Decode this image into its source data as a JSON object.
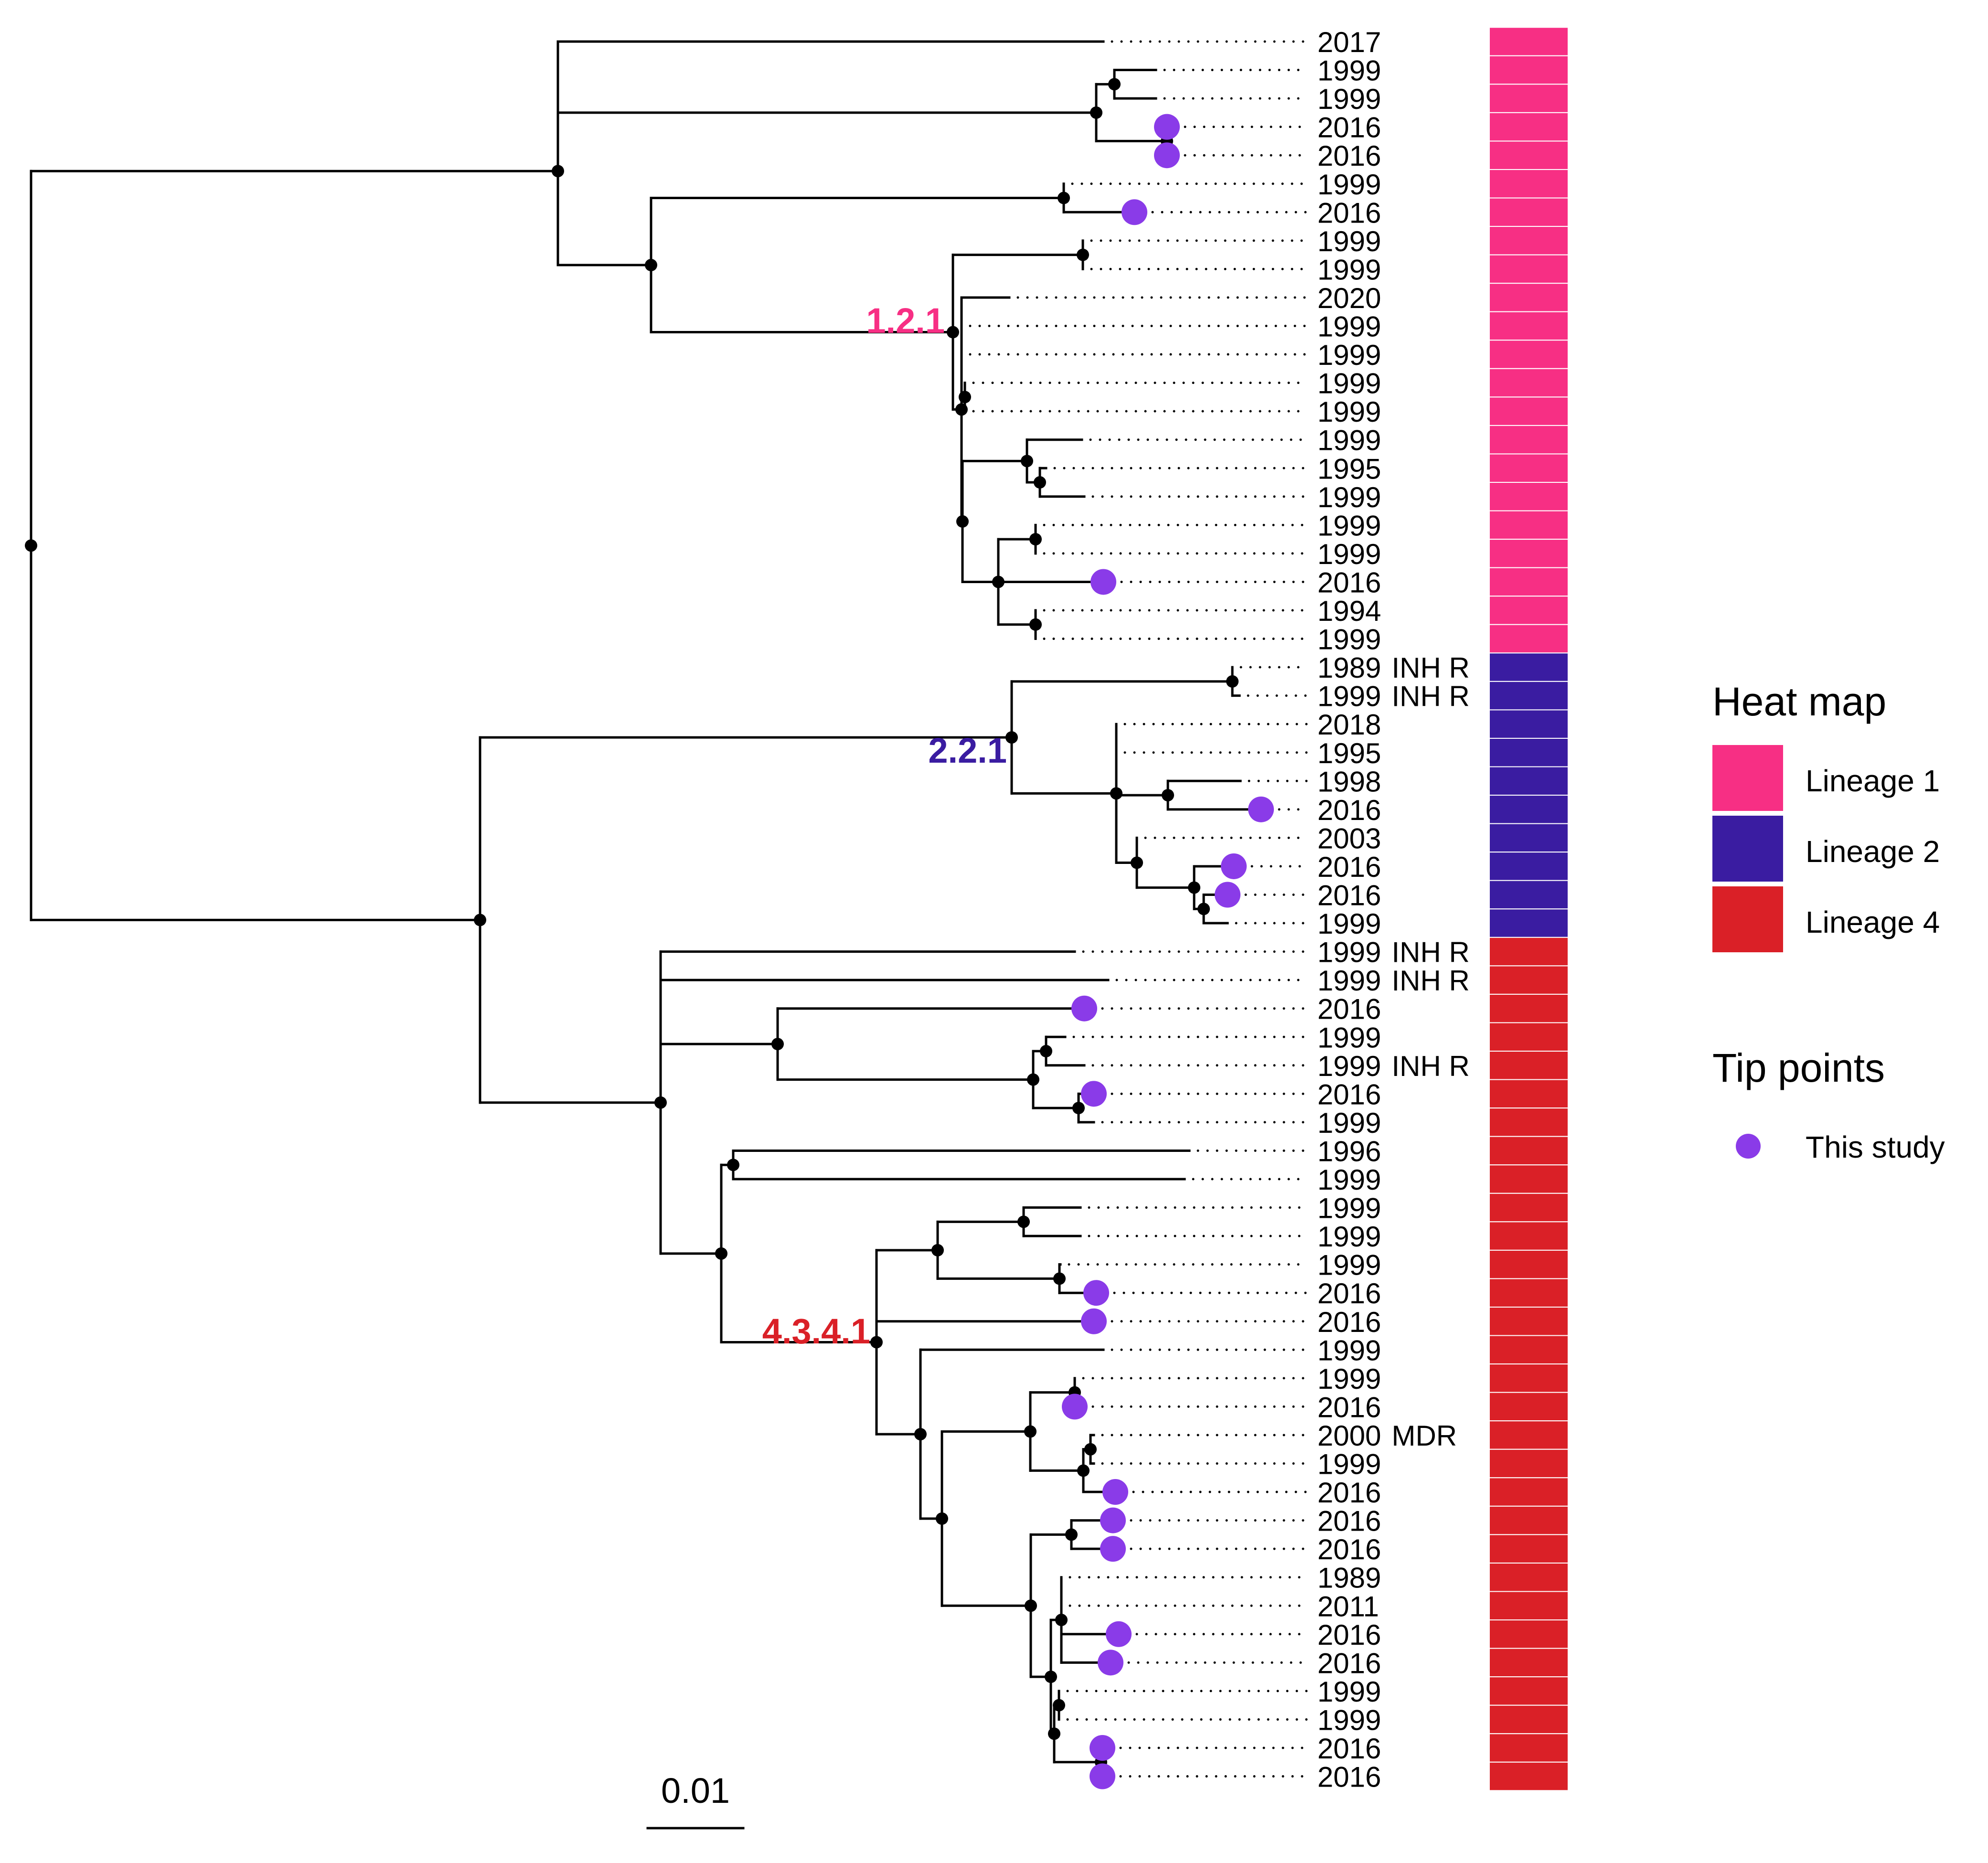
{
  "tree": {
    "tips": [
      {
        "year": "2017",
        "suffix": "",
        "lineage": 1,
        "this_study": false
      },
      {
        "year": "1999",
        "suffix": "",
        "lineage": 1,
        "this_study": false
      },
      {
        "year": "1999",
        "suffix": "",
        "lineage": 1,
        "this_study": false
      },
      {
        "year": "2016",
        "suffix": "",
        "lineage": 1,
        "this_study": true
      },
      {
        "year": "2016",
        "suffix": "",
        "lineage": 1,
        "this_study": true
      },
      {
        "year": "1999",
        "suffix": "",
        "lineage": 1,
        "this_study": false
      },
      {
        "year": "2016",
        "suffix": "",
        "lineage": 1,
        "this_study": true
      },
      {
        "year": "1999",
        "suffix": "",
        "lineage": 1,
        "this_study": false
      },
      {
        "year": "1999",
        "suffix": "",
        "lineage": 1,
        "this_study": false
      },
      {
        "year": "2020",
        "suffix": "",
        "lineage": 1,
        "this_study": false
      },
      {
        "year": "1999",
        "suffix": "",
        "lineage": 1,
        "this_study": false
      },
      {
        "year": "1999",
        "suffix": "",
        "lineage": 1,
        "this_study": false
      },
      {
        "year": "1999",
        "suffix": "",
        "lineage": 1,
        "this_study": false
      },
      {
        "year": "1999",
        "suffix": "",
        "lineage": 1,
        "this_study": false
      },
      {
        "year": "1999",
        "suffix": "",
        "lineage": 1,
        "this_study": false
      },
      {
        "year": "1995",
        "suffix": "",
        "lineage": 1,
        "this_study": false
      },
      {
        "year": "1999",
        "suffix": "",
        "lineage": 1,
        "this_study": false
      },
      {
        "year": "1999",
        "suffix": "",
        "lineage": 1,
        "this_study": false
      },
      {
        "year": "1999",
        "suffix": "",
        "lineage": 1,
        "this_study": false
      },
      {
        "year": "2016",
        "suffix": "",
        "lineage": 1,
        "this_study": true
      },
      {
        "year": "1994",
        "suffix": "",
        "lineage": 1,
        "this_study": false
      },
      {
        "year": "1999",
        "suffix": "",
        "lineage": 1,
        "this_study": false
      },
      {
        "year": "1989",
        "suffix": "INH R",
        "lineage": 2,
        "this_study": false
      },
      {
        "year": "1999",
        "suffix": "INH R",
        "lineage": 2,
        "this_study": false
      },
      {
        "year": "2018",
        "suffix": "",
        "lineage": 2,
        "this_study": false
      },
      {
        "year": "1995",
        "suffix": "",
        "lineage": 2,
        "this_study": false
      },
      {
        "year": "1998",
        "suffix": "",
        "lineage": 2,
        "this_study": false
      },
      {
        "year": "2016",
        "suffix": "",
        "lineage": 2,
        "this_study": true
      },
      {
        "year": "2003",
        "suffix": "",
        "lineage": 2,
        "this_study": false
      },
      {
        "year": "2016",
        "suffix": "",
        "lineage": 2,
        "this_study": true
      },
      {
        "year": "2016",
        "suffix": "",
        "lineage": 2,
        "this_study": true
      },
      {
        "year": "1999",
        "suffix": "",
        "lineage": 2,
        "this_study": false
      },
      {
        "year": "1999",
        "suffix": "INH R",
        "lineage": 4,
        "this_study": false
      },
      {
        "year": "1999",
        "suffix": "INH R",
        "lineage": 4,
        "this_study": false
      },
      {
        "year": "2016",
        "suffix": "",
        "lineage": 4,
        "this_study": true
      },
      {
        "year": "1999",
        "suffix": "",
        "lineage": 4,
        "this_study": false
      },
      {
        "year": "1999",
        "suffix": "INH R",
        "lineage": 4,
        "this_study": false
      },
      {
        "year": "2016",
        "suffix": "",
        "lineage": 4,
        "this_study": true
      },
      {
        "year": "1999",
        "suffix": "",
        "lineage": 4,
        "this_study": false
      },
      {
        "year": "1996",
        "suffix": "",
        "lineage": 4,
        "this_study": false
      },
      {
        "year": "1999",
        "suffix": "",
        "lineage": 4,
        "this_study": false
      },
      {
        "year": "1999",
        "suffix": "",
        "lineage": 4,
        "this_study": false
      },
      {
        "year": "1999",
        "suffix": "",
        "lineage": 4,
        "this_study": false
      },
      {
        "year": "1999",
        "suffix": "",
        "lineage": 4,
        "this_study": false
      },
      {
        "year": "2016",
        "suffix": "",
        "lineage": 4,
        "this_study": true
      },
      {
        "year": "2016",
        "suffix": "",
        "lineage": 4,
        "this_study": true
      },
      {
        "year": "1999",
        "suffix": "",
        "lineage": 4,
        "this_study": false
      },
      {
        "year": "1999",
        "suffix": "",
        "lineage": 4,
        "this_study": false
      },
      {
        "year": "2016",
        "suffix": "",
        "lineage": 4,
        "this_study": true
      },
      {
        "year": "2000",
        "suffix": "MDR",
        "lineage": 4,
        "this_study": false
      },
      {
        "year": "1999",
        "suffix": "",
        "lineage": 4,
        "this_study": false
      },
      {
        "year": "2016",
        "suffix": "",
        "lineage": 4,
        "this_study": true
      },
      {
        "year": "2016",
        "suffix": "",
        "lineage": 4,
        "this_study": true
      },
      {
        "year": "2016",
        "suffix": "",
        "lineage": 4,
        "this_study": true
      },
      {
        "year": "1989",
        "suffix": "",
        "lineage": 4,
        "this_study": false
      },
      {
        "year": "2011",
        "suffix": "",
        "lineage": 4,
        "this_study": false
      },
      {
        "year": "2016",
        "suffix": "",
        "lineage": 4,
        "this_study": true
      },
      {
        "year": "2016",
        "suffix": "",
        "lineage": 4,
        "this_study": true
      },
      {
        "year": "1999",
        "suffix": "",
        "lineage": 4,
        "this_study": false
      },
      {
        "year": "1999",
        "suffix": "",
        "lineage": 4,
        "this_study": false
      },
      {
        "year": "2016",
        "suffix": "",
        "lineage": 4,
        "this_study": true
      },
      {
        "year": "2016",
        "suffix": "",
        "lineage": 4,
        "this_study": true
      }
    ],
    "clade_labels": [
      {
        "text": "1.2.1",
        "color": "#F72F84"
      },
      {
        "text": "2.2.1",
        "color": "#3A1CA1"
      },
      {
        "text": "4.3.4.1",
        "color": "#DA2027"
      }
    ],
    "scale_bar": {
      "label": "0.01"
    }
  },
  "legend": {
    "heatmap_title": "Heat map",
    "heatmap_items": [
      {
        "label": "Lineage 1",
        "color": "#F72F84"
      },
      {
        "label": "Lineage 2",
        "color": "#3A1CA1"
      },
      {
        "label": "Lineage 4",
        "color": "#DA2027"
      }
    ],
    "tips_title": "Tip points",
    "tips_items": [
      {
        "label": "This study",
        "color": "#8A3BE8"
      }
    ]
  },
  "colors": {
    "lineage_1": "#F72F84",
    "lineage_2": "#3A1CA1",
    "lineage_4": "#DA2027",
    "this_study": "#8A3BE8"
  }
}
